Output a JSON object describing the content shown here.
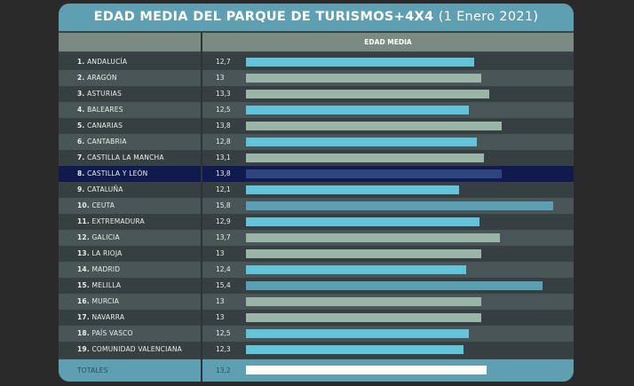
{
  "chart_data": {
    "type": "bar",
    "title": "EDAD MEDIA DEL PARQUE DE TURISMOS+4X4",
    "subtitle": "(1 Enero 2021)",
    "column_header": "EDAD MEDIA",
    "highlighted": "CASTILLA Y LEÓN",
    "categories": [
      "ANDALUCÍA",
      "ARAGÓN",
      "ASTURIAS",
      "BALEARES",
      "CANARIAS",
      "CANTABRIA",
      "CASTILLA LA MANCHA",
      "CASTILLA Y LEÓN",
      "CATALUÑA",
      "CEUTA",
      "EXTREMADURA",
      "GALICIA",
      "LA RIOJA",
      "MADRID",
      "MELILLA",
      "MURCIA",
      "NAVARRA",
      "PAÍS VASCO",
      "COMUNIDAD VALENCIANA"
    ],
    "values": [
      12.7,
      13,
      13.3,
      12.5,
      13.8,
      12.8,
      13.1,
      13.8,
      12.1,
      15.8,
      12.9,
      13.7,
      13,
      12.4,
      15.4,
      13,
      13,
      12.5,
      12.3
    ],
    "labels": [
      "12,7",
      "13",
      "13,3",
      "12,5",
      "13,8",
      "12,8",
      "13,1",
      "13,8",
      "12,1",
      "15,8",
      "12,9",
      "13,7",
      "13",
      "12,4",
      "15,4",
      "13",
      "13",
      "12,5",
      "12,3"
    ],
    "totals": {
      "label": "TOTALES",
      "value": 13.2,
      "value_label": "13,2"
    },
    "colors": {
      "below_13": "#62c4d8",
      "13_to_15": "#9ab5a7",
      "above_15": "#5a9fb3",
      "highlight": "#2f4580",
      "totals": "#ffffff"
    }
  }
}
